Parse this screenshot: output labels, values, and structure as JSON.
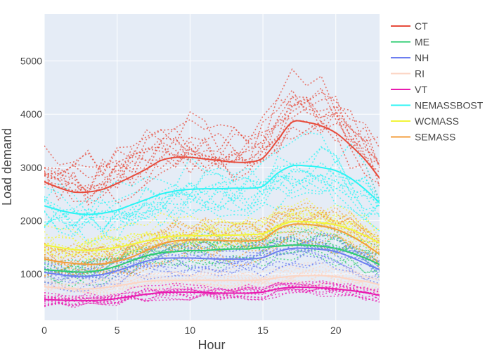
{
  "chart_data": {
    "type": "line",
    "xlabel": "Hour",
    "ylabel": "Load demand",
    "xlim": [
      0,
      23
    ],
    "ylim": [
      130,
      5880
    ],
    "x_ticks": [
      0,
      5,
      10,
      15,
      20
    ],
    "y_ticks": [
      1000,
      2000,
      3000,
      4000,
      5000
    ],
    "grid": true,
    "legend_position": "right",
    "plot_background": "#e5ecf6",
    "x": [
      0,
      1,
      2,
      3,
      4,
      5,
      6,
      7,
      8,
      9,
      10,
      11,
      12,
      13,
      14,
      15,
      16,
      17,
      18,
      19,
      20,
      21,
      22,
      23
    ],
    "series": [
      {
        "name": "CT",
        "color": "#e74c3c",
        "values": [
          2730,
          2620,
          2540,
          2540,
          2590,
          2700,
          2830,
          2970,
          3130,
          3190,
          3190,
          3160,
          3130,
          3100,
          3100,
          3180,
          3510,
          3850,
          3850,
          3780,
          3650,
          3420,
          3150,
          2800
        ]
      },
      {
        "name": "ME",
        "color": "#2ecc71",
        "values": [
          1080,
          1060,
          1040,
          1040,
          1080,
          1150,
          1250,
          1340,
          1400,
          1420,
          1440,
          1440,
          1460,
          1470,
          1470,
          1500,
          1520,
          1540,
          1540,
          1520,
          1480,
          1400,
          1300,
          1180
        ]
      },
      {
        "name": "NH",
        "color": "#6d7ef0",
        "values": [
          1030,
          990,
          960,
          960,
          990,
          1060,
          1150,
          1240,
          1290,
          1300,
          1300,
          1290,
          1280,
          1280,
          1280,
          1310,
          1420,
          1480,
          1480,
          1460,
          1420,
          1320,
          1200,
          1080
        ]
      },
      {
        "name": "RI",
        "color": "#fcd5c4",
        "values": [
          760,
          740,
          720,
          720,
          740,
          780,
          820,
          860,
          880,
          880,
          880,
          880,
          880,
          880,
          880,
          890,
          930,
          960,
          970,
          970,
          950,
          900,
          860,
          800
        ]
      },
      {
        "name": "VT",
        "color": "#e91bb0",
        "values": [
          520,
          510,
          500,
          500,
          510,
          540,
          580,
          620,
          650,
          660,
          660,
          650,
          640,
          640,
          640,
          660,
          720,
          750,
          750,
          740,
          720,
          690,
          650,
          600
        ]
      },
      {
        "name": "NEMASSBOST",
        "color": "#2bf4f4",
        "values": [
          2280,
          2200,
          2140,
          2120,
          2140,
          2200,
          2300,
          2400,
          2500,
          2560,
          2590,
          2600,
          2600,
          2610,
          2610,
          2650,
          2890,
          3030,
          3030,
          3000,
          2940,
          2800,
          2590,
          2340
        ]
      },
      {
        "name": "WCMASS",
        "color": "#f2f53a",
        "values": [
          1550,
          1500,
          1460,
          1440,
          1460,
          1500,
          1560,
          1620,
          1680,
          1710,
          1720,
          1720,
          1730,
          1730,
          1740,
          1760,
          1890,
          1980,
          1980,
          1960,
          1920,
          1840,
          1720,
          1580
        ]
      },
      {
        "name": "SEMASS",
        "color": "#f39c3a",
        "values": [
          1280,
          1230,
          1200,
          1180,
          1190,
          1240,
          1320,
          1440,
          1560,
          1620,
          1640,
          1640,
          1630,
          1620,
          1620,
          1650,
          1840,
          1930,
          1930,
          1900,
          1840,
          1720,
          1560,
          1370
        ]
      }
    ],
    "dotted_traces_per_series": 12,
    "dotted_trace_note": "Individual day traces shown as dotted lines around each mean curve"
  }
}
